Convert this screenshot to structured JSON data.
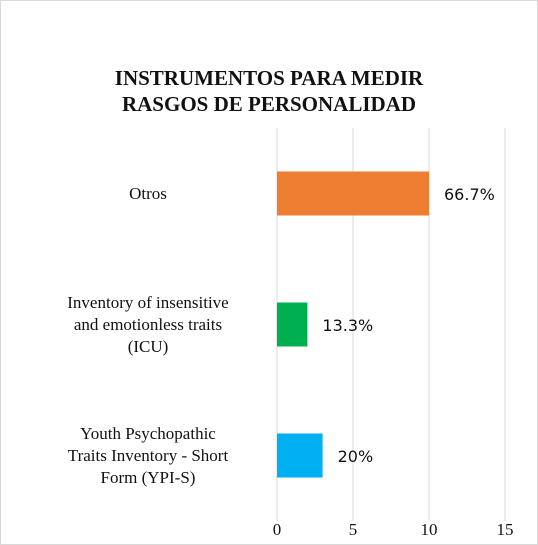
{
  "chart_data": {
    "type": "barh",
    "title": "INSTRUMENTOS PARA MEDIR\nRASGOS DE PERSONALIDAD",
    "categories": [
      "Otros",
      "Inventory of insensitive\nand emotionless traits\n(ICU)",
      "Youth Psychopathic\nTraits Inventory - Short\nForm (YPI-S)"
    ],
    "values": [
      10,
      2,
      3
    ],
    "value_labels": [
      "66.7%",
      "13.3%",
      "20%"
    ],
    "colors": [
      "#ed7d31",
      "#00b050",
      "#00b0f0"
    ],
    "xlim": [
      0,
      15
    ],
    "xticks": [
      0,
      5,
      10,
      15
    ],
    "grid": true
  }
}
